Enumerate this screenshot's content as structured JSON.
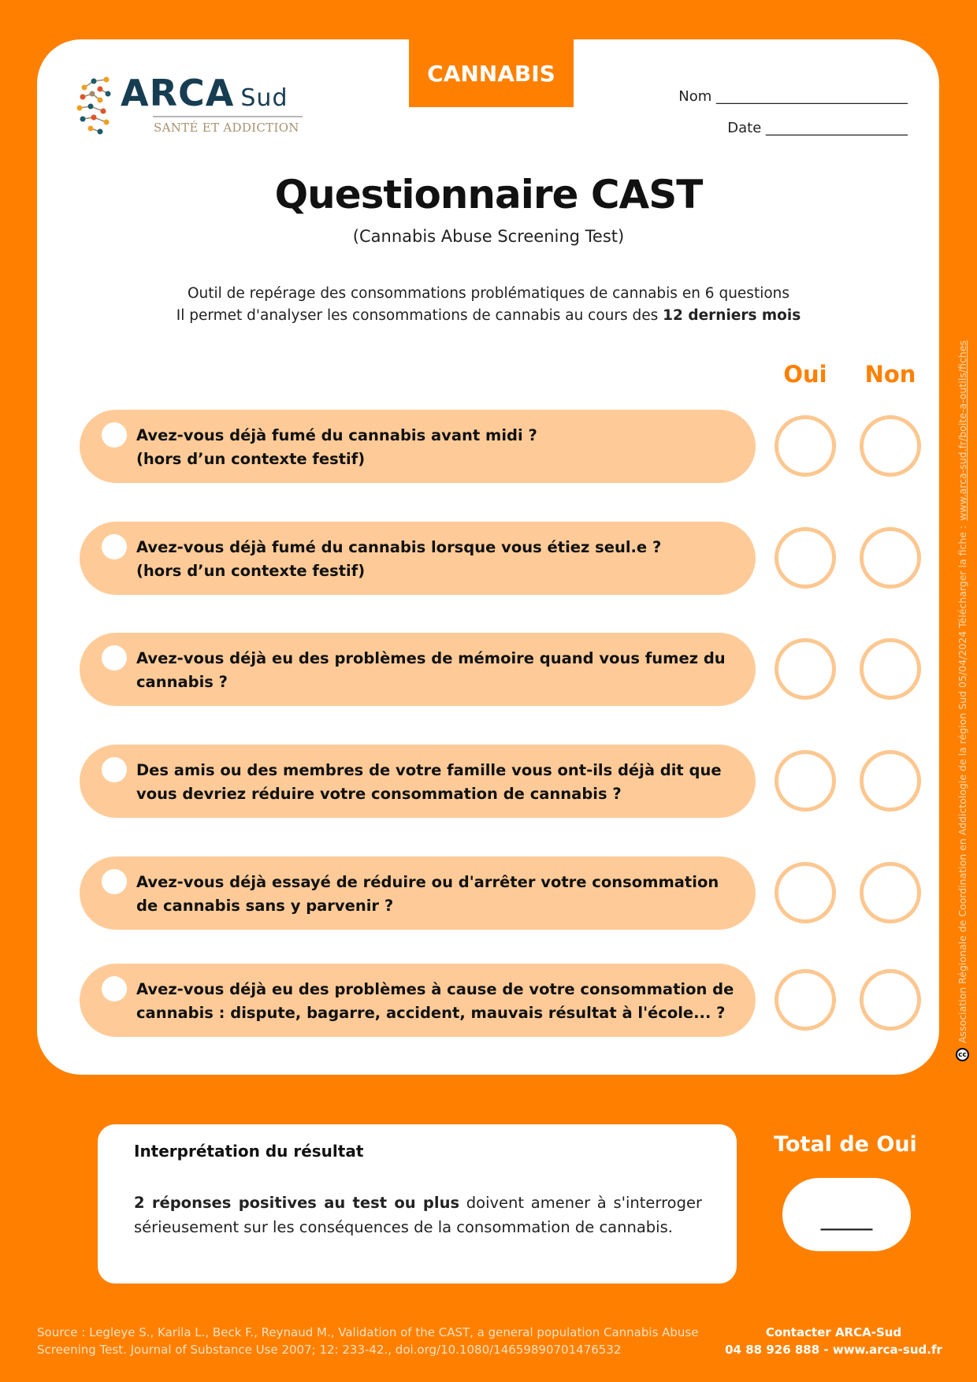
{
  "header": {
    "category_tab": "CANNABIS",
    "logo": {
      "name": "ARCA",
      "suffix": "Sud",
      "tagline": "SANTÉ ET ADDICTION"
    },
    "name_field": "Nom ___________________________",
    "date_field": "Date ____________________"
  },
  "title": "Questionnaire CAST",
  "subtitle": "(Cannabis Abuse Screening Test)",
  "intro": {
    "line1": "Outil de repérage des consommations problématiques de cannabis en 6 questions",
    "line2_prefix": "Il permet d'analyser les consommations de cannabis au cours des ",
    "line2_bold": "12 derniers mois"
  },
  "answer_headers": {
    "yes": "Oui",
    "no": "Non"
  },
  "questions": [
    {
      "text": "Avez-vous déjà fumé du cannabis avant midi ?\n(hors d’un contexte festif)"
    },
    {
      "text": "Avez-vous déjà fumé du cannabis lorsque vous étiez seul.e ?\n(hors d’un contexte festif)"
    },
    {
      "text": "Avez-vous déjà eu des problèmes de mémoire quand vous fumez du cannabis ?"
    },
    {
      "text": "Des amis ou des membres de votre famille vous ont-ils déjà dit que vous devriez réduire votre consommation de cannabis ?"
    },
    {
      "text": "Avez-vous déjà essayé de réduire ou d'arrêter votre consommation de cannabis sans y parvenir ?"
    },
    {
      "text": "Avez-vous déjà eu des problèmes à cause de votre consommation de cannabis : dispute, bagarre, accident, mauvais résultat à l'école... ?"
    }
  ],
  "interpretation": {
    "title": "Interprétation du résultat",
    "bold": "2 réponses positives au test ou plus",
    "rest": " doivent amener à s'interroger sérieusement sur les conséquences de la consommation de cannabis."
  },
  "total": {
    "label": "Total de Oui",
    "value": "______"
  },
  "footer": {
    "source_line1": "Source : Legleye S., Karila L., Beck F., Reynaud M., Validation of the CAST, a general population Cannabis Abuse",
    "source_line2": "Screening Test. Journal of Substance Use 2007; 12: 233-42., doi.org/10.1080/14659890701476532",
    "contact_title": "Contacter ARCA-Sud",
    "contact_info": "04 88 926 888 - www.arca-sud.fr"
  },
  "side_note": {
    "text": "Association Régionale de Coordination en Addictologie de la région Sud 05/04/2024 Télécharger la fiche : ",
    "link": "www.arca-sud.fr/boite-a-outils/fiches",
    "license_icon": "cc"
  },
  "colors": {
    "brand_orange": "#ff8000",
    "pill": "#fecb98",
    "circle": "#fcc790",
    "logo_navy": "#173d52"
  }
}
